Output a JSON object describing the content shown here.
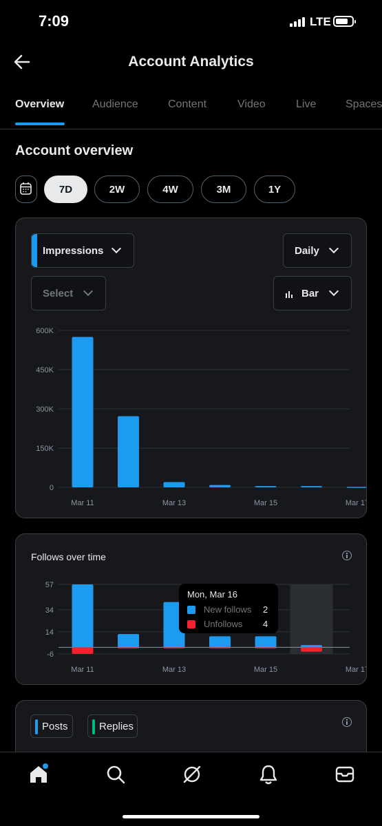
{
  "status": {
    "time": "7:09",
    "network": "LTE"
  },
  "header": {
    "title": "Account Analytics"
  },
  "tabs": [
    {
      "label": "Overview",
      "active": true
    },
    {
      "label": "Audience"
    },
    {
      "label": "Content"
    },
    {
      "label": "Video"
    },
    {
      "label": "Live"
    },
    {
      "label": "Spaces"
    }
  ],
  "section_title": "Account overview",
  "ranges": [
    {
      "label": "7D",
      "active": true
    },
    {
      "label": "2W"
    },
    {
      "label": "4W"
    },
    {
      "label": "3M"
    },
    {
      "label": "1Y"
    }
  ],
  "impressions_card": {
    "metric_dropdown": "Impressions",
    "interval_dropdown": "Daily",
    "compare_dropdown": "Select",
    "chart_type_dropdown": "Bar"
  },
  "follows_card": {
    "title": "Follows over time"
  },
  "tooltip": {
    "title": "Mon, Mar 16",
    "rows": [
      {
        "label": "New follows",
        "value": "2",
        "color": "#1d9bf0"
      },
      {
        "label": "Unfollows",
        "value": "4",
        "color": "#f4212e"
      }
    ]
  },
  "posts_card": {
    "legend": [
      {
        "label": "Posts",
        "color": "#1d9bf0"
      },
      {
        "label": "Replies",
        "color": "#00ba7c"
      }
    ]
  },
  "colors": {
    "accent": "#1d9bf0",
    "negative": "#f4212e",
    "replies": "#00ba7c"
  },
  "chart_data": [
    {
      "type": "bar",
      "title": "",
      "categories": [
        "Mar 11",
        "Mar 12",
        "Mar 13",
        "Mar 14",
        "Mar 15",
        "Mar 16",
        "Mar 17"
      ],
      "x_tick_labels": [
        "Mar 11",
        "Mar 13",
        "Mar 15",
        "Mar 17"
      ],
      "series": [
        {
          "values": [
            575000,
            272000,
            20000,
            9000,
            5000,
            5000,
            2000
          ]
        }
      ],
      "y_ticks": [
        "600K",
        "450K",
        "300K",
        "150K",
        "0"
      ],
      "ylim": [
        0,
        600000
      ],
      "grid": true
    },
    {
      "type": "bar",
      "title": "Follows over time",
      "categories": [
        "Mar 11",
        "Mar 12",
        "Mar 13",
        "Mar 14",
        "Mar 15",
        "Mar 16",
        "Mar 17"
      ],
      "x_tick_labels": [
        "Mar 11",
        "Mar 13",
        "Mar 15",
        "Mar 17"
      ],
      "series": [
        {
          "name": "New follows",
          "values": [
            57,
            12,
            41,
            10,
            10,
            2,
            0
          ]
        },
        {
          "name": "Unfollows",
          "values": [
            -6,
            -1,
            -1,
            -1,
            -1,
            -4,
            0
          ]
        }
      ],
      "y_ticks": [
        "57",
        "34",
        "14",
        "-6"
      ],
      "ylim": [
        -6,
        57
      ],
      "highlighted_category": "Mar 16",
      "grid": true
    }
  ]
}
